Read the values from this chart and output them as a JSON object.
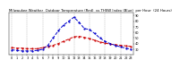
{
  "title": "Milwaukee Weather  Outdoor Temperature (Red)  vs THSW Index (Blue)  per Hour  (24 Hours)",
  "hours": [
    0,
    1,
    2,
    3,
    4,
    5,
    6,
    7,
    8,
    9,
    10,
    11,
    12,
    13,
    14,
    15,
    16,
    17,
    18,
    19,
    20,
    21,
    22,
    23
  ],
  "temp_red": [
    33,
    32,
    32,
    31,
    31,
    31,
    33,
    35,
    37,
    40,
    44,
    48,
    52,
    53,
    51,
    49,
    46,
    43,
    41,
    39,
    38,
    37,
    36,
    35
  ],
  "thsw_blue": [
    29,
    28,
    27,
    27,
    27,
    28,
    30,
    37,
    50,
    63,
    73,
    80,
    87,
    78,
    67,
    65,
    58,
    50,
    44,
    40,
    37,
    34,
    32,
    30
  ],
  "red_color": "#cc0000",
  "blue_color": "#0000cc",
  "bg_color": "#ffffff",
  "grid_color": "#888888",
  "ylim_min": 20,
  "ylim_max": 95,
  "ytick_vals": [
    30,
    40,
    50,
    60,
    70,
    80,
    90
  ],
  "ytick_labels": [
    "30",
    "40",
    "50",
    "60",
    "70",
    "80",
    "90"
  ],
  "xtick_vals": [
    0,
    1,
    2,
    3,
    4,
    5,
    6,
    7,
    8,
    9,
    10,
    11,
    12,
    13,
    14,
    15,
    16,
    17,
    18,
    19,
    20,
    21,
    22,
    23
  ],
  "vgrid_positions": [
    0,
    3,
    6,
    9,
    12,
    15,
    18,
    21
  ],
  "title_fontsize": 2.8,
  "tick_fontsize": 2.5,
  "linewidth": 0.7,
  "markersize": 1.2
}
